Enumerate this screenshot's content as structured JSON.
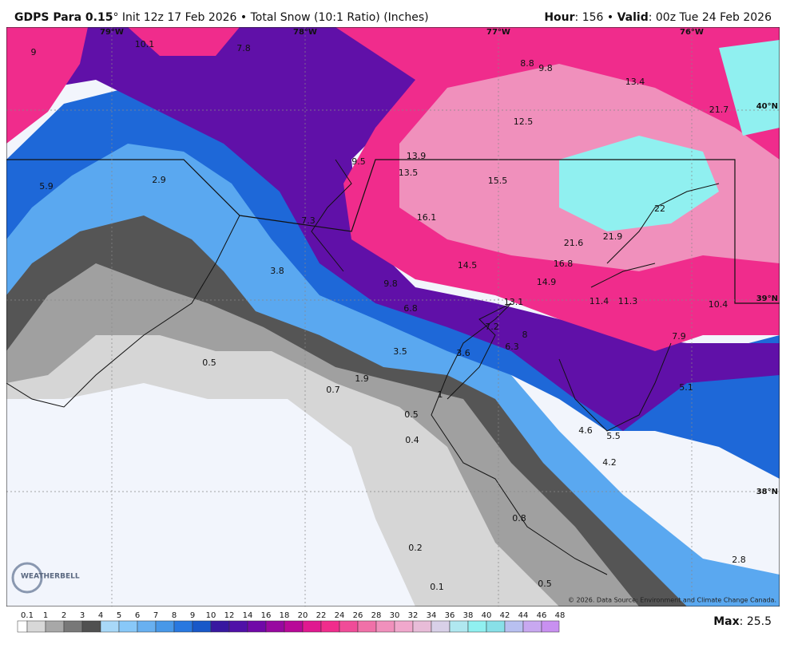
{
  "header": {
    "model": "GDPS Para 0.15",
    "run": "° Init 12z 17 Feb 2026 • Total Snow (10:1 Ratio) (Inches)",
    "hour_label": "Hour",
    "hour_value": ": 156 • ",
    "valid_label": "Valid",
    "valid_value": ": 00z Tue 24 Feb 2026"
  },
  "map": {
    "longitudes": [
      "79°W",
      "78°W",
      "77°W",
      "76°W"
    ],
    "latitudes": [
      "40°N",
      "39°N",
      "38°N"
    ],
    "point_values": [
      9.0,
      10.1,
      7.8,
      8.8,
      9.8,
      13.4,
      21.7,
      12.5,
      13.9,
      9.5,
      13.5,
      15.5,
      5.9,
      2.9,
      22.0,
      16.1,
      7.3,
      21.6,
      21.9,
      16.8,
      14.5,
      3.8,
      14.9,
      9.8,
      11.4,
      11.3,
      10.4,
      13.1,
      6.8,
      7.2,
      8.0,
      6.3,
      7.9,
      3.5,
      3.6,
      0.5,
      1.9,
      5.1,
      0.7,
      1.0,
      0.5,
      4.6,
      5.5,
      0.4,
      4.2,
      0.8,
      0.2,
      2.8,
      0.1,
      0.5
    ],
    "credit": "© 2026. Data Source: Environment and Climate Change Canada.",
    "logo": "WEATHERBELL"
  },
  "colorbar": {
    "ticks": [
      0.1,
      1,
      2,
      3,
      4,
      5,
      6,
      7,
      8,
      9,
      10,
      12,
      14,
      16,
      18,
      20,
      22,
      24,
      26,
      28,
      30,
      32,
      34,
      36,
      38,
      40,
      42,
      44,
      46,
      48
    ],
    "colors": [
      "#ffffff",
      "#d8d8d8",
      "#a8a8a8",
      "#787878",
      "#505050",
      "#a8d8f8",
      "#88c8f8",
      "#68b0f0",
      "#4898e8",
      "#2878e0",
      "#1858c8",
      "#3818a0",
      "#5010a8",
      "#7008a8",
      "#9808a0",
      "#b80898",
      "#e01890",
      "#f02c8c",
      "#f04c98",
      "#f070a8",
      "#f090bc",
      "#f0a8cc",
      "#e8bcd8",
      "#d8d0e8",
      "#b0e8f0",
      "#90f0f0",
      "#88e0e8",
      "#b8c0f0",
      "#c8a8f0",
      "#c890f0"
    ]
  },
  "max": {
    "label": "Max",
    "value": ": 25.5"
  }
}
